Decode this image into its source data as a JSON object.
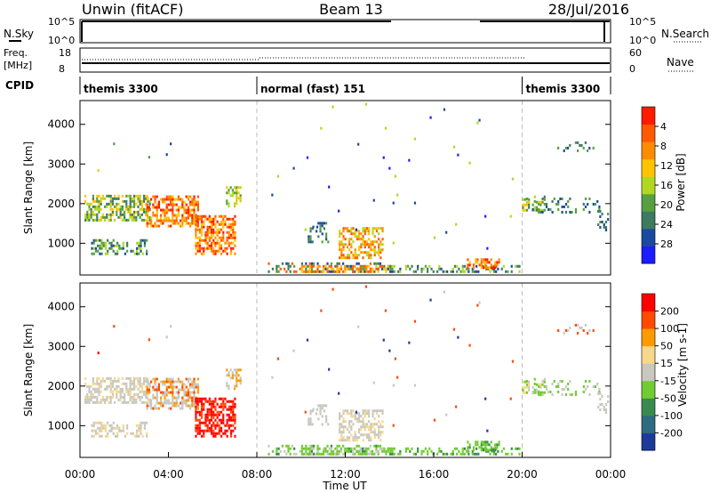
{
  "header": {
    "site": "Unwin (fitACF)",
    "beam": "Beam 13",
    "date": "28/Jul/2016"
  },
  "status_panels": {
    "nsky": {
      "label": "N.Sky",
      "ticks": [
        "10^5",
        "10^0"
      ],
      "right_label": "N.Search",
      "right_ticks": [
        "10^5",
        "10^0"
      ]
    },
    "freq": {
      "label_lines": [
        "Freq.",
        "[MHz]"
      ],
      "ticks": [
        "18",
        "8"
      ],
      "right_label": "Nave",
      "right_ticks": [
        "60",
        "0"
      ]
    },
    "cpid": {
      "label": "CPID",
      "segments": [
        {
          "name": "themis 3300",
          "start_h": 0,
          "end_h": 8
        },
        {
          "name": "normal (fast) 151",
          "start_h": 8,
          "end_h": 20
        },
        {
          "name": "themis 3300",
          "start_h": 20,
          "end_h": 24
        }
      ]
    }
  },
  "chart_data": [
    {
      "type": "heatmap",
      "name": "power",
      "ylabel": "Slant Range [km]",
      "yticks": [
        "1000",
        "2000",
        "3000",
        "4000"
      ],
      "ylim": [
        200,
        4600
      ],
      "colorbar": {
        "label": "Power [dB]",
        "ticks": [
          "4",
          "8",
          "12",
          "16",
          "20",
          "24",
          "28"
        ],
        "colors": [
          "#1c1cff",
          "#1a4aa0",
          "#3d7a60",
          "#56a040",
          "#b0d820",
          "#ffc400",
          "#ff8c00",
          "#ff5a00",
          "#ff1a00"
        ]
      }
    },
    {
      "type": "heatmap",
      "name": "velocity",
      "ylabel": "Slant Range [km]",
      "yticks": [
        "1000",
        "2000",
        "3000",
        "4000"
      ],
      "ylim": [
        200,
        4600
      ],
      "colorbar": {
        "label": "Velocity [m s-1]",
        "ticks": [
          "200",
          "100",
          "50",
          "15",
          "-15",
          "-50",
          "-100",
          "-200"
        ],
        "colors": [
          "#1d3a9a",
          "#2f6a80",
          "#3a8a50",
          "#70cc30",
          "#c8c8c0",
          "#f8d888",
          "#ff9a00",
          "#ff4a00",
          "#ff0000"
        ]
      }
    }
  ],
  "x_axis": {
    "label": "Time UT",
    "ticks": [
      "00:00",
      "04:00",
      "08:00",
      "12:00",
      "16:00",
      "20:00",
      "00:00"
    ],
    "range_h": [
      0,
      24
    ]
  }
}
